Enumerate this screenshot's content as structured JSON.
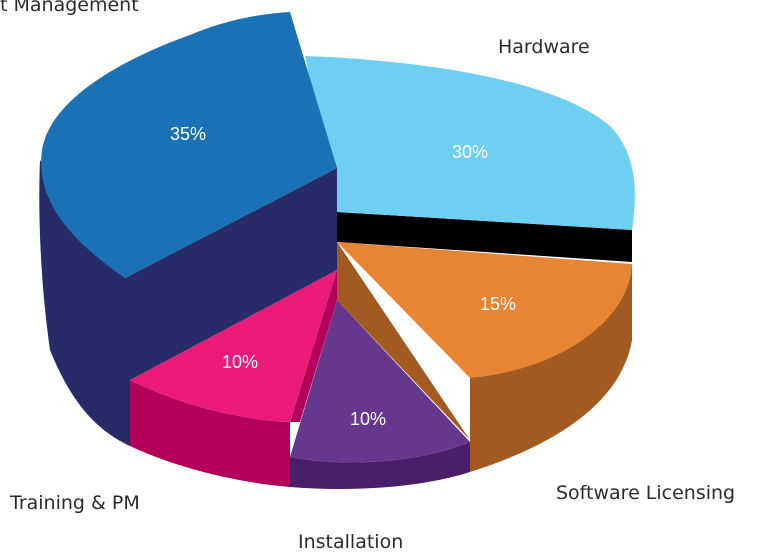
{
  "chart_data": {
    "type": "pie",
    "title": "",
    "style": "3d-exploded",
    "slices": [
      {
        "label": "Project Management",
        "display_label": "t Management",
        "value": 35,
        "value_label": "35%",
        "top": "#1a71b3",
        "side": "#272c68"
      },
      {
        "label": "Hardware",
        "display_label": "Hardware",
        "value": 30,
        "value_label": "30%",
        "top": "#6ecff2",
        "side": "#1a71b3"
      },
      {
        "label": "Software Licensing",
        "display_label": "Software Licensing",
        "value": 15,
        "value_label": "15%",
        "top": "#e88535",
        "side": "#a25a20"
      },
      {
        "label": "Installation",
        "display_label": "Installation",
        "value": 10,
        "value_label": "10%",
        "top": "#65388d",
        "side": "#4a1f6a"
      },
      {
        "label": "Training & PM",
        "display_label": "Training & PM",
        "value": 10,
        "value_label": "10%",
        "top": "#ec1a79",
        "side": "#b3005b"
      }
    ]
  }
}
